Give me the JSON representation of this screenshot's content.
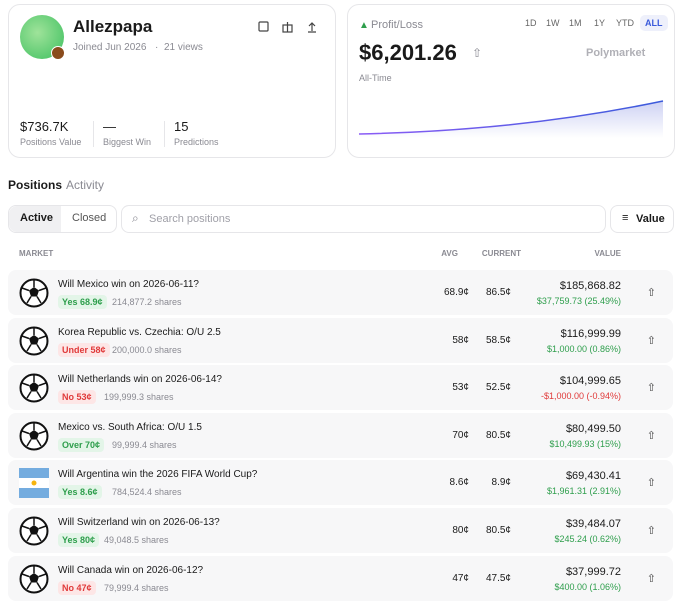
{
  "profile": {
    "name": "Allezpapa",
    "joined": "Joined Jun 2026",
    "views": "21 views",
    "stats": [
      {
        "value": "$736.7K",
        "label": "Positions Value"
      },
      {
        "value": "—",
        "label": "Biggest Win"
      },
      {
        "value": "15",
        "label": "Predictions"
      }
    ]
  },
  "pnl": {
    "label": "Profit/Loss",
    "ranges": [
      "1D",
      "1W",
      "1M",
      "1Y",
      "YTD",
      "ALL"
    ],
    "value": "$6,201.26",
    "period": "All-Time",
    "brand": "Polymarket"
  },
  "tabs": [
    "Positions",
    "Activity"
  ],
  "filters": [
    "Active",
    "Closed"
  ],
  "search_placeholder": "Search positions",
  "sort": "Value",
  "table": {
    "headers": [
      "MARKET",
      "AVG",
      "CURRENT",
      "VALUE"
    ],
    "rows": [
      {
        "title": "Will Mexico win on 2026-06-11?",
        "outcome": "Yes 68.9¢",
        "outcome_color": "green",
        "shares": "214,877.2 shares",
        "avg": "68.9¢",
        "current": "86.5¢",
        "value": "$185,868.82",
        "pnl": "$37,759.73 (25.49%)",
        "pnl_color": "green"
      },
      {
        "title": "Korea Republic vs. Czechia: O/U 2.5",
        "outcome": "Under 58¢",
        "outcome_color": "red",
        "shares": "200,000.0 shares",
        "avg": "58¢",
        "current": "58.5¢",
        "value": "$116,999.99",
        "pnl": "$1,000.00 (0.86%)",
        "pnl_color": "green"
      },
      {
        "title": "Will Netherlands win on 2026-06-14?",
        "outcome": "No 53¢",
        "outcome_color": "red",
        "shares": "199,999.3 shares",
        "avg": "53¢",
        "current": "52.5¢",
        "value": "$104,999.65",
        "pnl": "-$1,000.00 (-0.94%)",
        "pnl_color": "red"
      },
      {
        "title": "Mexico vs. South Africa: O/U 1.5",
        "outcome": "Over 70¢",
        "outcome_color": "green",
        "shares": "99,999.4 shares",
        "avg": "70¢",
        "current": "80.5¢",
        "value": "$80,499.50",
        "pnl": "$10,499.93 (15%)",
        "pnl_color": "green"
      },
      {
        "title": "Will Argentina win the 2026 FIFA World Cup?",
        "outcome": "Yes 8.6¢",
        "outcome_color": "green",
        "shares": "784,524.4 shares",
        "avg": "8.6¢",
        "current": "8.9¢",
        "value": "$69,430.41",
        "pnl": "$1,961.31 (2.91%)",
        "pnl_color": "green"
      },
      {
        "title": "Will Switzerland win on 2026-06-13?",
        "outcome": "Yes 80¢",
        "outcome_color": "green",
        "shares": "49,048.5 shares",
        "avg": "80¢",
        "current": "80.5¢",
        "value": "$39,484.07",
        "pnl": "$245.24 (0.62%)",
        "pnl_color": "green"
      },
      {
        "title": "Will Canada win on 2026-06-12?",
        "outcome": "No 47¢",
        "outcome_color": "red",
        "shares": "79,999.4 shares",
        "avg": "47¢",
        "current": "47.5¢",
        "value": "$37,999.72",
        "pnl": "$400.00 (1.06%)",
        "pnl_color": "green"
      }
    ]
  }
}
